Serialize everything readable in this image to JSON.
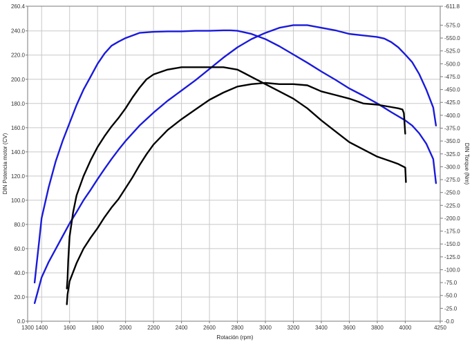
{
  "chart_data": {
    "type": "line",
    "title": "",
    "xlabel": "Rotación (rpm)",
    "ylabel": "DIN Potencia motor (CV)",
    "y2label": "DIN Torque (Nm)",
    "xlim": [
      1300,
      4250
    ],
    "ylim": [
      0,
      260.4
    ],
    "y2lim": [
      0,
      611.8
    ],
    "grid": true,
    "legend": "none",
    "x_ticks": [
      "1300",
      "1400",
      "1600",
      "1800",
      "2000",
      "2200",
      "2400",
      "2600",
      "2800",
      "3000",
      "3200",
      "3400",
      "3600",
      "3800",
      "4000",
      "4250"
    ],
    "y_ticks": [
      "0.0",
      "20.0",
      "40.0",
      "60.0",
      "80.0",
      "100.0",
      "120.0",
      "140.0",
      "160.0",
      "180.0",
      "200.0",
      "220.0",
      "240.0",
      "260.4"
    ],
    "y2_ticks": [
      "0.0",
      "25.0",
      "50.0",
      "75.0",
      "100.0",
      "125.0",
      "150.0",
      "175.0",
      "200.0",
      "225.0",
      "250.0",
      "275.0",
      "300.0",
      "325.0",
      "350.0",
      "375.0",
      "400.0",
      "425.0",
      "450.0",
      "475.0",
      "500.0",
      "525.0",
      "550.0",
      "575.0",
      "611.8"
    ],
    "colors": {
      "torque": "#1a1adc",
      "power": "#000000",
      "grid": "#c8c8c8"
    },
    "series": [
      {
        "color": "#1a1adc",
        "axis": "y2",
        "x": [
          1350,
          1360,
          1380,
          1400,
          1450,
          1500,
          1550,
          1600,
          1650,
          1700,
          1750,
          1800,
          1850,
          1900,
          1950,
          2000,
          2100,
          2200,
          2300,
          2400,
          2500,
          2600,
          2700,
          2750,
          2800,
          2900,
          3000,
          3100,
          3200,
          3300,
          3400,
          3500,
          3600,
          3700,
          3800,
          3900,
          4000,
          4050,
          4100,
          4150,
          4200,
          4220
        ],
        "y": [
          75,
          100,
          150,
          200,
          260,
          310,
          350,
          385,
          420,
          450,
          475,
          500,
          520,
          535,
          543,
          550,
          560,
          562,
          563,
          563,
          564,
          564,
          565,
          565,
          564,
          558,
          548,
          534,
          518,
          502,
          485,
          469,
          452,
          438,
          423,
          406,
          390,
          380,
          365,
          345,
          315,
          268
        ]
      },
      {
        "color": "#1a1adc",
        "axis": "y2",
        "x": [
          1350,
          1360,
          1400,
          1450,
          1500,
          1550,
          1600,
          1650,
          1700,
          1750,
          1800,
          1850,
          1900,
          1950,
          2000,
          2100,
          2200,
          2300,
          2400,
          2500,
          2600,
          2700,
          2800,
          2900,
          3000,
          3100,
          3200,
          3300,
          3400,
          3500,
          3600,
          3700,
          3800,
          3850,
          3900,
          3950,
          4000,
          4050,
          4100,
          4150,
          4200,
          4220
        ],
        "y": [
          35,
          45,
          85,
          115,
          140,
          165,
          190,
          212,
          235,
          255,
          276,
          296,
          315,
          333,
          350,
          380,
          405,
          428,
          448,
          468,
          490,
          512,
          532,
          548,
          560,
          570,
          575,
          575,
          570,
          565,
          558,
          555,
          552,
          549,
          542,
          532,
          518,
          503,
          480,
          450,
          415,
          380
        ]
      },
      {
        "color": "#000000",
        "axis": "y",
        "x": [
          1580,
          1585,
          1590,
          1600,
          1625,
          1650,
          1700,
          1750,
          1800,
          1850,
          1900,
          1950,
          2000,
          2050,
          2100,
          2150,
          2200,
          2300,
          2400,
          2500,
          2600,
          2700,
          2800,
          2850,
          2900,
          3000,
          3100,
          3200,
          3300,
          3400,
          3500,
          3600,
          3700,
          3800,
          3900,
          3950,
          4000,
          4005
        ],
        "y": [
          27,
          35,
          50,
          70,
          90,
          104,
          120,
          133,
          144,
          153,
          161,
          168,
          176,
          185,
          193,
          200,
          204,
          208,
          210,
          210,
          210,
          210,
          208,
          205,
          202,
          196,
          190,
          184,
          176,
          166,
          157,
          148,
          142,
          136,
          132,
          130,
          127,
          115
        ]
      },
      {
        "color": "#000000",
        "axis": "y",
        "x": [
          1580,
          1585,
          1600,
          1650,
          1700,
          1750,
          1800,
          1850,
          1900,
          1950,
          2000,
          2050,
          2100,
          2150,
          2200,
          2300,
          2400,
          2500,
          2600,
          2700,
          2800,
          2900,
          3000,
          3100,
          3200,
          3300,
          3400,
          3500,
          3600,
          3700,
          3800,
          3900,
          3950,
          3980,
          3990,
          4000
        ],
        "y": [
          14,
          22,
          33,
          48,
          60,
          69,
          77,
          86,
          94,
          101,
          110,
          119,
          129,
          138,
          146,
          158,
          167,
          175,
          183,
          189,
          194,
          196,
          197,
          196,
          196,
          195,
          190,
          187,
          184,
          180,
          179,
          177,
          176,
          175,
          172,
          155
        ]
      }
    ]
  }
}
